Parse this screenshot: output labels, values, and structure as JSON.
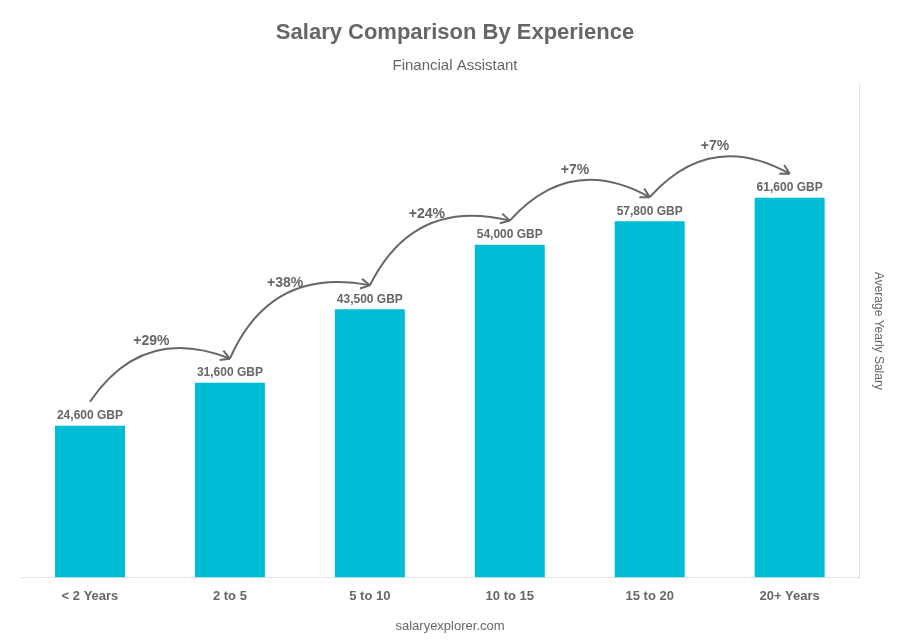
{
  "chart_data": {
    "type": "bar",
    "title": "Salary Comparison By Experience",
    "subtitle": "Financial Assistant",
    "categories": [
      "< 2 Years",
      "2 to 5",
      "5 to 10",
      "10 to 15",
      "15 to 20",
      "20+ Years"
    ],
    "values": [
      24600,
      31600,
      43500,
      54000,
      57800,
      61600
    ],
    "value_labels": [
      "24,600 GBP",
      "31,600 GBP",
      "43,500 GBP",
      "54,000 GBP",
      "57,800 GBP",
      "61,600 GBP"
    ],
    "data_labels": true,
    "annotations": [
      "+29%",
      "+38%",
      "+24%",
      "+7%",
      "+7%"
    ],
    "watermark": "salaryexplorer.com",
    "ylabel": "Average Yearly Salary",
    "color": "#00bcd4",
    "ylim": [
      0,
      80000
    ],
    "yticks": [],
    "tick_labels": "x",
    "grid": false
  }
}
